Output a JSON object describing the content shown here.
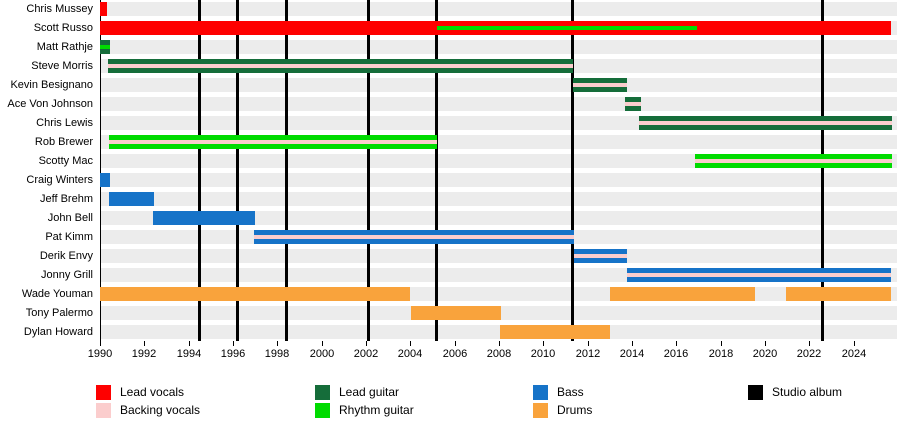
{
  "chart_data": {
    "type": "timeline",
    "description": "Band members timeline (Gantt-style) with studio album release markers",
    "x_axis": {
      "start": 1990,
      "end": 2025.95,
      "present": 2025.7,
      "label_years": [
        1990,
        1992,
        1994,
        1996,
        1998,
        2000,
        2002,
        2004,
        2006,
        2008,
        2010,
        2012,
        2014,
        2016,
        2018,
        2020,
        2022,
        2024
      ]
    },
    "colors": {
      "lead_vocals": "#fe0000",
      "backing_vocals": "#fbcdcd",
      "lead_guitar": "#156d3a",
      "rhythm_guitar": "#00db00",
      "bass": "#1673c8",
      "drums": "#f9a33c",
      "album": "#000000",
      "row_band": "#ececec"
    },
    "members": [
      {
        "name": "Chris Mussey",
        "role": "lead_vocals",
        "segments": [
          [
            1990,
            1990.32
          ]
        ],
        "stripe": null
      },
      {
        "name": "Scott Russo",
        "role": "lead_vocals",
        "segments": [
          [
            1990,
            2025.7
          ]
        ],
        "stripe": {
          "role": "rhythm_guitar",
          "from": 2005.2,
          "to": 2016.92
        }
      },
      {
        "name": "Matt Rathje",
        "role": "lead_guitar",
        "segments": [
          [
            1990,
            1990.45
          ]
        ],
        "stripe": {
          "role": "rhythm_guitar"
        }
      },
      {
        "name": "Steve Morris",
        "role": "lead_guitar",
        "segments": [
          [
            1990.36,
            2011.33
          ]
        ],
        "stripe": {
          "role": "backing_vocals"
        }
      },
      {
        "name": "Kevin Besignano",
        "role": "lead_guitar",
        "segments": [
          [
            2011.33,
            2013.77
          ]
        ],
        "stripe": {
          "role": "backing_vocals"
        }
      },
      {
        "name": "Ace Von Johnson",
        "role": "lead_guitar",
        "segments": [
          [
            2013.68,
            2014.4
          ]
        ],
        "stripe": {
          "role": "backing_vocals"
        }
      },
      {
        "name": "Chris Lewis",
        "role": "lead_guitar",
        "segments": [
          [
            2014.31,
            2025.7
          ]
        ],
        "stripe": {
          "role": "backing_vocals"
        }
      },
      {
        "name": "Rob Brewer",
        "role": "rhythm_guitar",
        "segments": [
          [
            1990.4,
            2005.2
          ]
        ],
        "stripe": {
          "role": "backing_vocals"
        }
      },
      {
        "name": "Scotty Mac",
        "role": "rhythm_guitar",
        "segments": [
          [
            2016.83,
            2025.7
          ]
        ],
        "stripe": {
          "role": "backing_vocals"
        }
      },
      {
        "name": "Craig Winters",
        "role": "bass",
        "segments": [
          [
            1990,
            1990.45
          ]
        ],
        "stripe": null
      },
      {
        "name": "Jeff Brehm",
        "role": "bass",
        "segments": [
          [
            1990.4,
            1992.44
          ]
        ],
        "stripe": null
      },
      {
        "name": "John Bell",
        "role": "bass",
        "segments": [
          [
            1992.4,
            1996.99
          ]
        ],
        "stripe": null
      },
      {
        "name": "Pat Kimm",
        "role": "bass",
        "segments": [
          [
            1996.95,
            2011.38
          ]
        ],
        "stripe": {
          "role": "backing_vocals"
        }
      },
      {
        "name": "Derik Envy",
        "role": "bass",
        "segments": [
          [
            2011.38,
            2013.77
          ]
        ],
        "stripe": {
          "role": "backing_vocals"
        }
      },
      {
        "name": "Jonny Grill",
        "role": "bass",
        "segments": [
          [
            2013.77,
            2025.7
          ]
        ],
        "stripe": {
          "role": "backing_vocals"
        }
      },
      {
        "name": "Wade Youman",
        "role": "drums",
        "segments": [
          [
            1990,
            2004.0
          ],
          [
            2013.0,
            2019.55
          ],
          [
            2020.95,
            2025.7
          ]
        ],
        "stripe": null
      },
      {
        "name": "Tony Palermo",
        "role": "drums",
        "segments": [
          [
            2004.03,
            2008.09
          ]
        ],
        "stripe": null
      },
      {
        "name": "Dylan Howard",
        "role": "drums",
        "segments": [
          [
            2008.04,
            2013.0
          ]
        ],
        "stripe": null
      }
    ],
    "album_years": [
      1994.5,
      1996.2,
      1998.4,
      2002.1,
      2005.2,
      2011.3,
      2022.6
    ],
    "legend": {
      "columns": [
        {
          "entries": [
            {
              "role": "lead_vocals",
              "label": "Lead vocals"
            },
            {
              "role": "backing_vocals",
              "label": "Backing vocals"
            }
          ]
        },
        {
          "entries": [
            {
              "role": "lead_guitar",
              "label": "Lead guitar"
            },
            {
              "role": "rhythm_guitar",
              "label": "Rhythm guitar"
            }
          ]
        },
        {
          "entries": [
            {
              "role": "bass",
              "label": "Bass"
            },
            {
              "role": "drums",
              "label": "Drums"
            }
          ]
        },
        {
          "entries": [
            {
              "role": "album",
              "label": "Studio album"
            }
          ]
        }
      ]
    }
  }
}
